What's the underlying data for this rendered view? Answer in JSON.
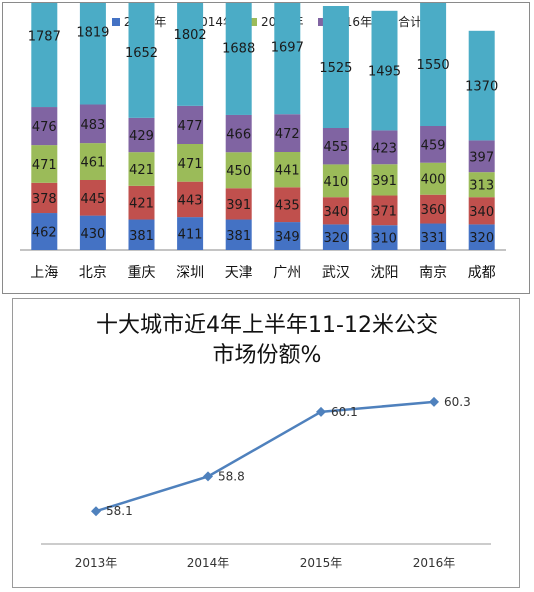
{
  "chart_data": [
    {
      "type": "bar",
      "stacked": true,
      "categories": [
        "上海",
        "北京",
        "重庆",
        "深圳",
        "天津",
        "广州",
        "武汉",
        "沈阳",
        "南京",
        "成都"
      ],
      "series": [
        {
          "name": "2013年",
          "color": "#4472c4",
          "values": [
            462,
            430,
            381,
            411,
            381,
            349,
            320,
            310,
            331,
            320
          ]
        },
        {
          "name": "2014年",
          "color": "#c0504d",
          "values": [
            378,
            445,
            421,
            443,
            391,
            435,
            340,
            371,
            360,
            340
          ]
        },
        {
          "name": "2015年",
          "color": "#9bbb59",
          "values": [
            471,
            461,
            421,
            471,
            450,
            441,
            410,
            391,
            400,
            313
          ]
        },
        {
          "name": "2016年",
          "color": "#8064a2",
          "values": [
            476,
            483,
            429,
            477,
            466,
            472,
            455,
            423,
            459,
            397
          ]
        },
        {
          "name": "合计",
          "color": "#4bacc6",
          "values": [
            1787,
            1819,
            1652,
            1802,
            1688,
            1697,
            1525,
            1495,
            1550,
            1370
          ]
        }
      ],
      "legend_position": "top",
      "grid": false,
      "ylim": [
        0,
        3600
      ]
    },
    {
      "type": "line",
      "title_line1": "十大城市近4年上半年11-12米公交",
      "title_line2": "市场份额%",
      "categories": [
        "2013年",
        "2014年",
        "2015年",
        "2016年"
      ],
      "series": [
        {
          "color": "#4f81bd",
          "values": [
            58.1,
            58.8,
            60.1,
            60.3
          ],
          "labels": [
            "58.1",
            "58.8",
            "60.1",
            "60.3"
          ]
        }
      ],
      "ylim": [
        57.5,
        60.6
      ],
      "grid": false
    }
  ]
}
